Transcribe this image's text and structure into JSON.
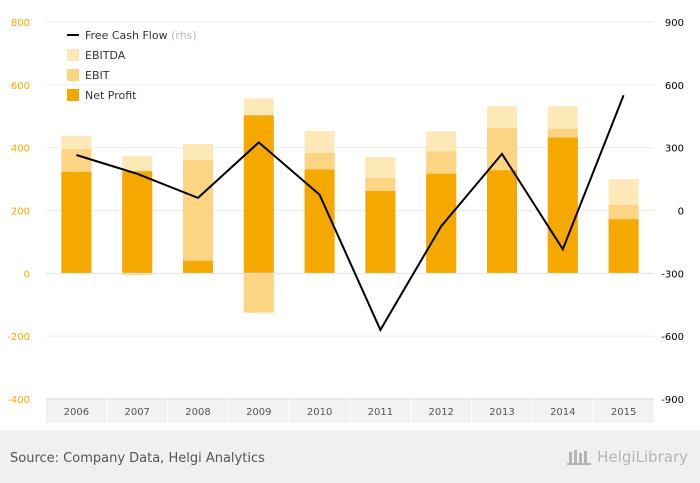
{
  "chart_data": {
    "type": "bar",
    "categories": [
      "2006",
      "2007",
      "2008",
      "2009",
      "2010",
      "2011",
      "2012",
      "2013",
      "2014",
      "2015"
    ],
    "series": [
      {
        "name": "EBITDA",
        "values": [
          438,
          373,
          412,
          557,
          453,
          370,
          452,
          532,
          532,
          300
        ],
        "color": "#fde9b8",
        "kind": "bar"
      },
      {
        "name": "EBIT",
        "values": [
          395,
          -5,
          360,
          -125,
          383,
          303,
          388,
          462,
          460,
          218
        ],
        "color": "#fcd482",
        "kind": "bar"
      },
      {
        "name": "Net Profit",
        "values": [
          323,
          325,
          40,
          503,
          330,
          262,
          317,
          328,
          432,
          172
        ],
        "color": "#f5a800",
        "kind": "bar"
      },
      {
        "name": "Free Cash Flow",
        "suffix": "(rhs)",
        "values": [
          265,
          175,
          60,
          325,
          75,
          -570,
          -75,
          270,
          -185,
          550
        ],
        "color": "#000000",
        "kind": "line",
        "axis": "right"
      }
    ],
    "y_left": {
      "min": -400,
      "max": 800,
      "ticks": [
        800,
        600,
        400,
        200,
        0,
        -200,
        -400
      ],
      "tick_labels": [
        "800",
        "600",
        "400",
        "200",
        "0",
        "-200",
        "-400"
      ],
      "color": "#f5a800"
    },
    "y_right": {
      "min": -900,
      "max": 900,
      "ticks": [
        900,
        600,
        300,
        0,
        -300,
        -600,
        -900
      ],
      "tick_labels": [
        "900",
        "600",
        "300",
        "0",
        "-300",
        "-600",
        "-900"
      ],
      "color": "#000000"
    },
    "grid": true,
    "legend_placement": "top-left"
  },
  "footer": {
    "source": "Source: Company Data, Helgi Analytics",
    "brand": "HelgiLibrary"
  }
}
